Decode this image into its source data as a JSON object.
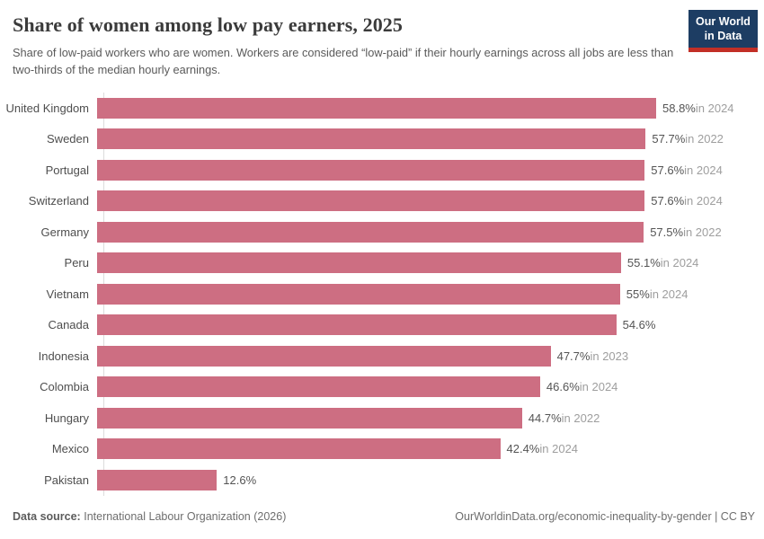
{
  "header": {
    "title": "Share of women among low pay earners, 2025",
    "subtitle": "Share of low-paid workers who are women. Workers are considered “low-paid” if their hourly earnings across all jobs are less than two-thirds of the median hourly earnings."
  },
  "logo": {
    "line1": "Our World",
    "line2": "in Data"
  },
  "chart_data": {
    "type": "bar",
    "orientation": "horizontal",
    "title": "Share of women among low pay earners, 2025",
    "unit": "%",
    "xlim": [
      0,
      58.8
    ],
    "grid": false,
    "legend": "none",
    "categories": [
      "United Kingdom",
      "Sweden",
      "Portugal",
      "Switzerland",
      "Germany",
      "Peru",
      "Vietnam",
      "Canada",
      "Indonesia",
      "Colombia",
      "Hungary",
      "Mexico",
      "Pakistan"
    ],
    "values": [
      58.8,
      57.7,
      57.6,
      57.6,
      57.5,
      55.1,
      55,
      54.6,
      47.7,
      46.6,
      44.7,
      42.4,
      12.6
    ],
    "value_labels": [
      "58.8%",
      "57.7%",
      "57.6%",
      "57.6%",
      "57.5%",
      "55.1%",
      "55%",
      "54.6%",
      "47.7%",
      "46.6%",
      "44.7%",
      "42.4%",
      "12.6%"
    ],
    "year_labels": [
      "in 2024",
      "in 2022",
      "in 2024",
      "in 2024",
      "in 2022",
      "in 2024",
      "in 2024",
      "",
      "in 2023",
      "in 2024",
      "in 2022",
      "in 2024",
      ""
    ]
  },
  "colors": {
    "bar": "#cd6e82",
    "logo_bg": "#1d3d63",
    "logo_red": "#c22f26",
    "title_text": "#3b3b3b",
    "value_text": "#545454",
    "year_text": "#9e9e9e"
  },
  "footer": {
    "source_label": "Data source:",
    "source_text": "International Labour Organization (2026)",
    "link_text": "OurWorldinData.org/economic-inequality-by-gender | CC BY"
  }
}
